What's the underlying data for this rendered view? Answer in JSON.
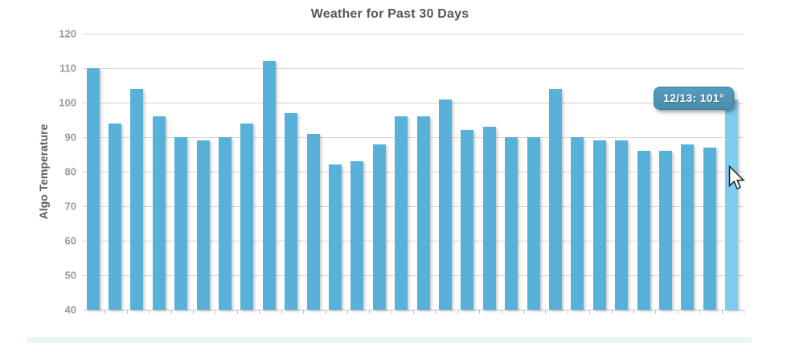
{
  "chart_data": {
    "type": "bar",
    "title": "Weather for Past 30 Days",
    "xlabel": "",
    "ylabel": "Algo Temperature",
    "ylim": [
      40,
      120
    ],
    "y_ticks": [
      120,
      110,
      100,
      90,
      80,
      70,
      60,
      50,
      40
    ],
    "grid": "horizontal",
    "legend": "none",
    "values": [
      110,
      94,
      104,
      96,
      90,
      89,
      90,
      94,
      112,
      97,
      91,
      82,
      83,
      88,
      96,
      96,
      101,
      92,
      93,
      90,
      90,
      104,
      90,
      89,
      89,
      86,
      86,
      88,
      87,
      101
    ],
    "highlighted_index": 29,
    "tooltip": {
      "label": "12/13",
      "value": 101,
      "text": "12/13: 101°"
    },
    "colors": {
      "bar": "#57b1d9",
      "bar_highlight": "#7ccdf0",
      "tooltip_background": "#4e94b6",
      "tooltip_border": "#3f7d9d",
      "tooltip_text": "#ffffff",
      "title_text": "#565656",
      "axis_label_text": "#9a9a9a",
      "y_axis_title_text": "#555d66",
      "gridline": "#d6d6d6",
      "axis_line": "#b9cede",
      "bottom_strip": "#e9f4f8"
    }
  }
}
